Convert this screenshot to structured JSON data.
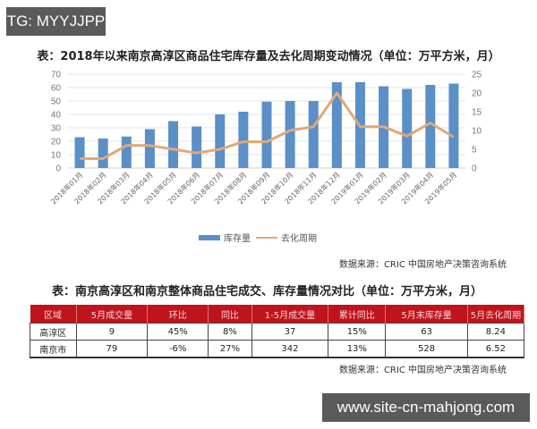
{
  "watermarks": {
    "top": "TG: MYYJJPP",
    "bottom": "www.site-cn-mahjong.com"
  },
  "chart_data": {
    "type": "bar",
    "title": "表：2018年以来南京高淳区商品住宅库存量及去化周期变动情况（单位：万平方米，月）",
    "categories": [
      "2018年01月",
      "2018年02月",
      "2018年03月",
      "2018年04月",
      "2018年05月",
      "2018年06月",
      "2018年07月",
      "2018年08月",
      "2018年09月",
      "2018年10月",
      "2018年11月",
      "2018年12月",
      "2019年01月",
      "2019年02月",
      "2019年03月",
      "2019年04月",
      "2019年05月"
    ],
    "series": [
      {
        "name": "库存量",
        "type": "bar",
        "axis": "left",
        "color": "#5b8fc7",
        "values": [
          23,
          22,
          23.5,
          29,
          35,
          31,
          40,
          42,
          49.5,
          50,
          50,
          64,
          64,
          61,
          59,
          62,
          63
        ]
      },
      {
        "name": "去化周期",
        "type": "line",
        "axis": "right",
        "color": "#e0a878",
        "values": [
          2.5,
          2.5,
          6,
          6,
          5,
          4,
          5,
          7,
          7,
          10,
          11,
          20,
          11,
          11,
          8.5,
          12,
          8.24
        ]
      }
    ],
    "left_axis": {
      "ticks": [
        0,
        10,
        20,
        30,
        40,
        50,
        60,
        70
      ],
      "ylim": [
        0,
        70
      ]
    },
    "right_axis": {
      "ticks": [
        0,
        5,
        10,
        15,
        20,
        25
      ],
      "ylim": [
        0,
        25
      ]
    },
    "grid": true,
    "legend_position": "bottom",
    "legend": [
      "库存量",
      "去化周期"
    ]
  },
  "chart": {
    "title": "表：2018年以来南京高淳区商品住宅库存量及去化周期变动情况（单位：万平方米，月）",
    "legend_inventory": "库存量",
    "legend_cycle": "去化周期",
    "source": "数据来源：CRIC 中国房地产决策咨询系统"
  },
  "table": {
    "title": "表：南京高淳区和南京整体商品住宅成交、库存量情况对比（单位：万平方米，月）",
    "headers": [
      "区域",
      "5月成交量",
      "环比",
      "同比",
      "1-5月成交量",
      "累计同比",
      "5月末库存量",
      "5月去化周期"
    ],
    "rows": [
      [
        "高淳区",
        "9",
        "45%",
        "8%",
        "37",
        "15%",
        "63",
        "8.24"
      ],
      [
        "南京市",
        "79",
        "-6%",
        "27%",
        "342",
        "13%",
        "528",
        "6.52"
      ]
    ],
    "source": "数据来源：CRIC 中国房地产决策咨询系统"
  }
}
